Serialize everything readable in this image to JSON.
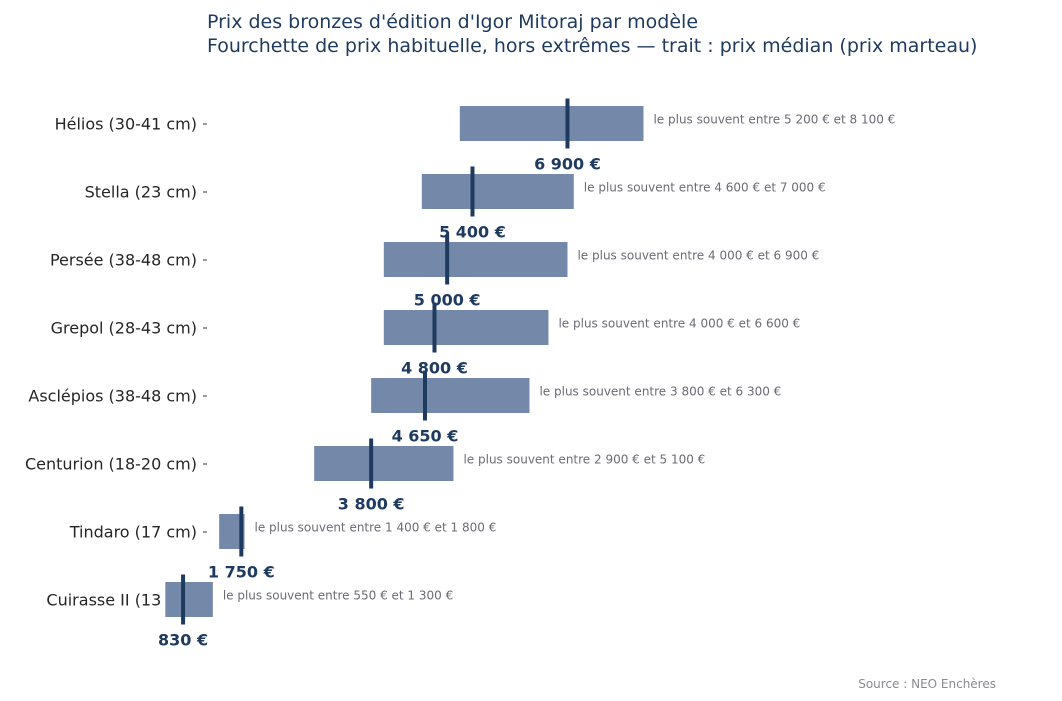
{
  "chart_data": {
    "type": "bar",
    "subtype": "floating-range",
    "title": "Prix des bronzes d'édition d'Igor Mitoraj par modèle",
    "subtitle": "Fourchette de prix habituelle, hors extrêmes — trait : prix médian (prix marteau)",
    "source": "Source : NEO Enchères",
    "colors": {
      "range": "#7489a9",
      "median": "#1f3a5f",
      "label": "#6b6b75"
    },
    "categories": [
      "Hélios (30-41 cm)",
      "Stella (23 cm)",
      "Persée (38-48 cm)",
      "Grepol (28-43 cm)",
      "Asclépios (38-48 cm)",
      "Centurion (18-20 cm)",
      "Tindaro (17 cm)",
      "Cuirasse II (13 cm)"
    ],
    "low": [
      5200,
      4600,
      4000,
      4000,
      3800,
      2900,
      1400,
      550
    ],
    "high": [
      8100,
      7000,
      6900,
      6600,
      6300,
      5100,
      1800,
      1300
    ],
    "median": [
      6900,
      5400,
      5000,
      4800,
      4650,
      3800,
      1750,
      830
    ],
    "median_labels": [
      "6 900 €",
      "5 400 €",
      "5 000 €",
      "4 800 €",
      "4 650 €",
      "3 800 €",
      "1 750 €",
      "830 €"
    ],
    "range_labels": [
      "le plus souvent entre 5 200 € et 8 100 €",
      "le plus souvent entre 4 600 € et 7 000 €",
      "le plus souvent entre 4 000 € et 6 900 €",
      "le plus souvent entre 4 000 € et 6 600 €",
      "le plus souvent entre 3 800 € et 6 300 €",
      "le plus souvent entre 2 900 € et 5 100 €",
      "le plus souvent entre 1 400 € et 1 800 €",
      "le plus souvent entre 550 € et 1 300 €"
    ]
  }
}
